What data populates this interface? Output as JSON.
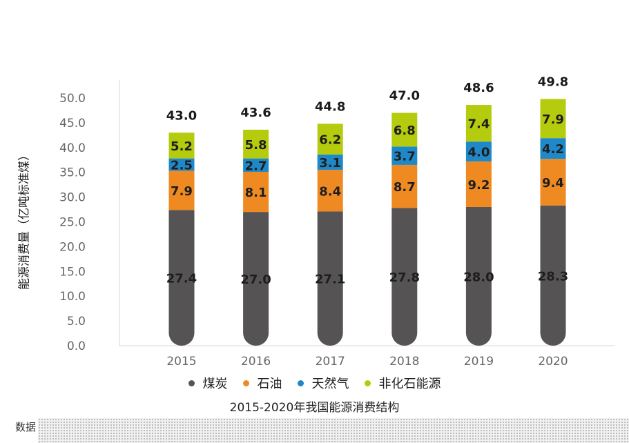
{
  "chart_data": {
    "type": "bar",
    "stacked": true,
    "title": "2015-2020年我国能源消费结构",
    "xlabel": "",
    "ylabel": "能源消费量（亿吨标准煤）",
    "categories": [
      "2015",
      "2016",
      "2017",
      "2018",
      "2019",
      "2020"
    ],
    "series": [
      {
        "name": "煤炭",
        "color": "#555354",
        "values": [
          27.4,
          27.0,
          27.1,
          27.8,
          28.0,
          28.3
        ]
      },
      {
        "name": "石油",
        "color": "#ef8a22",
        "values": [
          7.9,
          8.1,
          8.4,
          8.7,
          9.2,
          9.4
        ]
      },
      {
        "name": "天然气",
        "color": "#1f88c9",
        "values": [
          2.5,
          2.7,
          3.1,
          3.7,
          4.0,
          4.2
        ]
      },
      {
        "name": "非化石能源",
        "color": "#b5cc0e",
        "values": [
          5.2,
          5.8,
          6.2,
          6.8,
          7.4,
          7.9
        ]
      }
    ],
    "totals": [
      43.0,
      43.6,
      44.8,
      47.0,
      48.6,
      49.8
    ],
    "ylim": [
      0,
      50
    ],
    "yticks": [
      "0.0",
      "5.0",
      "10.0",
      "15.0",
      "20.0",
      "25.0",
      "30.0",
      "35.0",
      "40.0",
      "45.0",
      "50.0"
    ],
    "grid": false,
    "legend_position": "bottom"
  },
  "footnote": "数据"
}
